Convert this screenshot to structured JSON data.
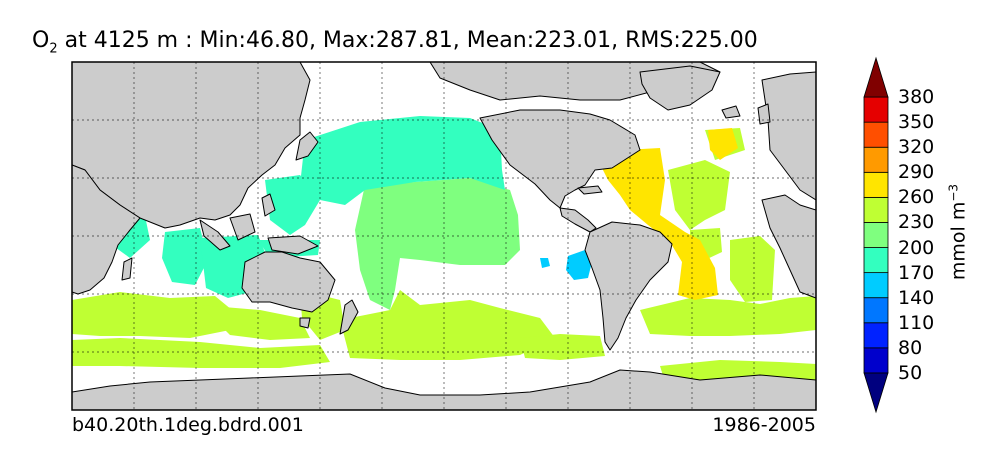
{
  "title": {
    "var": "O",
    "sub": "2",
    "text": " at 4125 m : Min:46.80, Max:287.81, Mean:223.01, RMS:225.00"
  },
  "footer": {
    "run": "b40.20th.1deg.bdrd.001",
    "years": "1986-2005"
  },
  "colorbar": {
    "unit_base": "mmol m",
    "unit_exp": "−3",
    "levels": [
      35,
      50,
      80,
      110,
      140,
      170,
      200,
      230,
      260,
      290,
      320,
      350,
      380,
      410
    ],
    "labels": [
      "50",
      "80",
      "110",
      "140",
      "170",
      "200",
      "230",
      "260",
      "290",
      "320",
      "350",
      "380"
    ],
    "colors": [
      "#00007f",
      "#0000cc",
      "#0022ff",
      "#0077ff",
      "#00ccff",
      "#33ffbf",
      "#7fff7f",
      "#bfff33",
      "#ffe500",
      "#ff9a00",
      "#ff4f00",
      "#e50000",
      "#800000"
    ]
  },
  "map_colors": {
    "land": "#cccccc",
    "ocean": "#ffffff",
    "c140": "#00ccff",
    "c170": "#33ffbf",
    "c200": "#7fff7f",
    "c230": "#bfff33",
    "c260": "#ffe500"
  }
}
